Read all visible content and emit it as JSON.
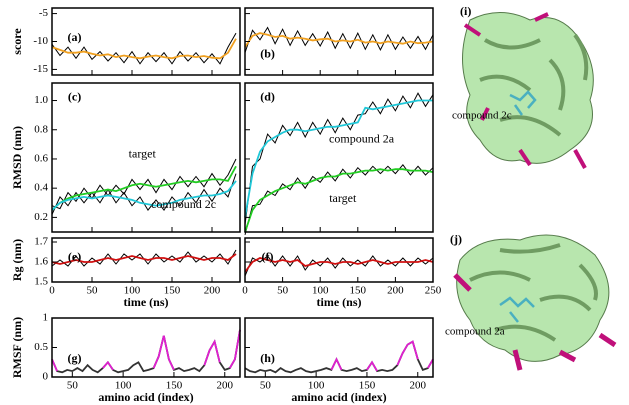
{
  "chart_data": [
    {
      "type": "line",
      "label": "(a)",
      "ylabel": "score",
      "xlim": [
        0,
        235
      ],
      "ylim": [
        -16,
        -4
      ],
      "xticks": [
        0,
        50,
        100,
        150,
        200
      ],
      "yticks": [
        -15,
        -10,
        -5
      ],
      "show_xtick_labels": false,
      "show_ytick_labels": true,
      "x": [
        0,
        10,
        20,
        30,
        40,
        50,
        60,
        70,
        80,
        90,
        100,
        110,
        120,
        130,
        140,
        150,
        160,
        170,
        180,
        190,
        200,
        210,
        220,
        230
      ],
      "series": [
        {
          "color": "#000000",
          "values": [
            -10.5,
            -12.5,
            -11,
            -13,
            -11,
            -13.2,
            -11.8,
            -13.5,
            -12,
            -13.8,
            -11.8,
            -14,
            -12,
            -13.6,
            -12,
            -14,
            -11.8,
            -13.5,
            -12,
            -13.8,
            -12.2,
            -14,
            -11,
            -8.5
          ]
        },
        {
          "color": "#f0a020",
          "values": [
            -11,
            -11.5,
            -12,
            -12,
            -11.8,
            -12.2,
            -12.5,
            -12.3,
            -12.8,
            -12.5,
            -12.8,
            -13,
            -12.7,
            -12.5,
            -12.8,
            -13,
            -12.6,
            -12.5,
            -12.8,
            -12.6,
            -12.9,
            -13,
            -12,
            -9.5
          ]
        }
      ]
    },
    {
      "type": "line",
      "label": "(b)",
      "xlim": [
        0,
        250
      ],
      "ylim": [
        -16,
        -4
      ],
      "xticks": [
        0,
        50,
        100,
        150,
        200,
        250
      ],
      "yticks": [
        -15,
        -10,
        -5
      ],
      "show_xtick_labels": false,
      "show_ytick_labels": false,
      "x": [
        0,
        10,
        20,
        30,
        40,
        50,
        60,
        70,
        80,
        90,
        100,
        110,
        120,
        130,
        140,
        150,
        160,
        170,
        180,
        190,
        200,
        210,
        220,
        230,
        240,
        250
      ],
      "series": [
        {
          "color": "#000000",
          "values": [
            -12,
            -8,
            -9.7,
            -7.5,
            -10.4,
            -7.8,
            -10.7,
            -8.1,
            -10.7,
            -8.6,
            -10.8,
            -8.3,
            -11.2,
            -8.6,
            -11.2,
            -8.5,
            -11.4,
            -8.8,
            -11.5,
            -8.8,
            -11.4,
            -9.2,
            -11.2,
            -9.1,
            -11.4,
            -8.8
          ]
        },
        {
          "color": "#f0a020",
          "values": [
            -11,
            -9,
            -8.5,
            -8.8,
            -9.2,
            -9,
            -9.5,
            -9.3,
            -9.5,
            -9.8,
            -9.6,
            -9.5,
            -10,
            -9.8,
            -10,
            -9.7,
            -10.2,
            -10,
            -10.3,
            -10,
            -10.2,
            -10.4,
            -10,
            -10.3,
            -10.2,
            -10
          ]
        }
      ]
    },
    {
      "type": "line",
      "label": "(c)",
      "ylabel": "RMSD (nm)",
      "xlim": [
        0,
        235
      ],
      "ylim": [
        0.1,
        1.12
      ],
      "xticks": [
        0,
        50,
        100,
        150,
        200
      ],
      "yticks": [
        0.2,
        0.4,
        0.6,
        0.8,
        {
          "value": 1,
          "label": "1.0"
        }
      ],
      "show_xtick_labels": false,
      "show_ytick_labels": true,
      "x": [
        0,
        10,
        20,
        30,
        40,
        50,
        60,
        70,
        80,
        90,
        100,
        110,
        120,
        130,
        140,
        150,
        160,
        170,
        180,
        190,
        200,
        210,
        220,
        230
      ],
      "series": [
        {
          "color": "#000000",
          "values": [
            0.22,
            0.34,
            0.28,
            0.37,
            0.3,
            0.37,
            0.3,
            0.39,
            0.3,
            0.37,
            0.28,
            0.34,
            0.25,
            0.32,
            0.25,
            0.34,
            0.28,
            0.37,
            0.3,
            0.39,
            0.31,
            0.4,
            0.34,
            0.5
          ]
        },
        {
          "color": "#000000",
          "values": [
            0.28,
            0.26,
            0.37,
            0.31,
            0.4,
            0.33,
            0.42,
            0.35,
            0.42,
            0.36,
            0.46,
            0.39,
            0.46,
            0.37,
            0.46,
            0.39,
            0.48,
            0.41,
            0.48,
            0.41,
            0.5,
            0.42,
            0.49,
            0.6
          ]
        },
        {
          "color": "#22cc22",
          "values": [
            0.25,
            0.3,
            0.33,
            0.35,
            0.36,
            0.37,
            0.38,
            0.39,
            0.38,
            0.4,
            0.42,
            0.43,
            0.42,
            0.41,
            0.42,
            0.43,
            0.44,
            0.45,
            0.44,
            0.45,
            0.46,
            0.46,
            0.45,
            0.55
          ]
        },
        {
          "color": "#20c8d8",
          "values": [
            0.25,
            0.3,
            0.32,
            0.33,
            0.34,
            0.33,
            0.34,
            0.35,
            0.34,
            0.33,
            0.32,
            0.3,
            0.29,
            0.28,
            0.29,
            0.3,
            0.32,
            0.33,
            0.34,
            0.35,
            0.35,
            0.36,
            0.38,
            0.45
          ]
        }
      ],
      "annotations": [
        {
          "text": "target",
          "color": "#22aa22"
        },
        {
          "text": "compound 2c",
          "color": "#1a7a8a"
        }
      ]
    },
    {
      "type": "line",
      "label": "(d)",
      "xlim": [
        0,
        250
      ],
      "ylim": [
        0.1,
        1.12
      ],
      "xticks": [
        0,
        50,
        100,
        150,
        200,
        250
      ],
      "yticks": [
        0.2,
        0.4,
        0.6,
        0.8,
        1
      ],
      "show_xtick_labels": false,
      "show_ytick_labels": false,
      "x": [
        0,
        10,
        20,
        30,
        40,
        50,
        60,
        70,
        80,
        90,
        100,
        110,
        120,
        130,
        140,
        150,
        160,
        170,
        180,
        190,
        200,
        210,
        220,
        230,
        240,
        250
      ],
      "series": [
        {
          "color": "#000000",
          "values": [
            0.15,
            0.55,
            0.6,
            0.77,
            0.71,
            0.83,
            0.76,
            0.85,
            0.75,
            0.85,
            0.77,
            0.87,
            0.78,
            0.88,
            0.8,
            0.9,
            0.91,
            0.99,
            0.91,
            1.01,
            0.93,
            1.03,
            0.95,
            1.05,
            0.96,
            1.04
          ]
        },
        {
          "color": "#000000",
          "values": [
            0.08,
            0.28,
            0.29,
            0.38,
            0.35,
            0.43,
            0.39,
            0.47,
            0.4,
            0.48,
            0.44,
            0.51,
            0.45,
            0.53,
            0.47,
            0.54,
            0.49,
            0.55,
            0.5,
            0.55,
            0.5,
            0.56,
            0.49,
            0.55,
            0.49,
            0.54
          ]
        },
        {
          "color": "#20c8d8",
          "values": [
            0.2,
            0.5,
            0.65,
            0.72,
            0.75,
            0.78,
            0.8,
            0.8,
            0.79,
            0.8,
            0.81,
            0.82,
            0.82,
            0.83,
            0.84,
            0.85,
            0.95,
            0.94,
            0.95,
            0.96,
            0.97,
            0.98,
            0.99,
            1.0,
            1.0,
            1.0
          ]
        },
        {
          "color": "#22cc22",
          "values": [
            0.1,
            0.25,
            0.32,
            0.35,
            0.38,
            0.4,
            0.42,
            0.44,
            0.43,
            0.45,
            0.47,
            0.48,
            0.48,
            0.5,
            0.5,
            0.51,
            0.52,
            0.52,
            0.53,
            0.52,
            0.53,
            0.53,
            0.52,
            0.52,
            0.52,
            0.51
          ]
        }
      ],
      "annotations": [
        {
          "text": "compound 2a",
          "color": "#1a7a8a"
        },
        {
          "text": "target",
          "color": "#22aa22"
        }
      ]
    },
    {
      "type": "line",
      "label": "(e)",
      "ylabel": "Rg (nm)",
      "xlabel": "time (ns)",
      "xlim": [
        0,
        235
      ],
      "ylim": [
        1.5,
        1.72
      ],
      "xticks": [
        0,
        50,
        100,
        150,
        200
      ],
      "yticks": [
        1.5,
        1.6,
        1.7
      ],
      "show_xtick_labels": true,
      "show_ytick_labels": true,
      "x": [
        0,
        10,
        20,
        30,
        40,
        50,
        60,
        70,
        80,
        90,
        100,
        110,
        120,
        130,
        140,
        150,
        160,
        170,
        180,
        190,
        200,
        210,
        220,
        230
      ],
      "series": [
        {
          "color": "#000000",
          "values": [
            1.58,
            1.61,
            1.58,
            1.63,
            1.58,
            1.62,
            1.59,
            1.64,
            1.59,
            1.64,
            1.61,
            1.64,
            1.59,
            1.64,
            1.6,
            1.63,
            1.6,
            1.65,
            1.6,
            1.63,
            1.6,
            1.64,
            1.59,
            1.66
          ]
        },
        {
          "color": "#d01010",
          "values": [
            1.6,
            1.59,
            1.6,
            1.61,
            1.6,
            1.6,
            1.61,
            1.62,
            1.61,
            1.62,
            1.63,
            1.62,
            1.61,
            1.62,
            1.62,
            1.61,
            1.62,
            1.63,
            1.62,
            1.61,
            1.62,
            1.62,
            1.61,
            1.64
          ]
        }
      ]
    },
    {
      "type": "line",
      "label": "(f)",
      "xlabel": "time (ns)",
      "xlim": [
        0,
        250
      ],
      "ylim": [
        1.5,
        1.72
      ],
      "xticks": [
        0,
        50,
        100,
        150,
        200,
        250
      ],
      "yticks": [
        1.5,
        1.6,
        1.7
      ],
      "show_xtick_labels": true,
      "show_ytick_labels": false,
      "x": [
        0,
        10,
        20,
        30,
        40,
        50,
        60,
        70,
        80,
        90,
        100,
        110,
        120,
        130,
        140,
        150,
        160,
        170,
        180,
        190,
        200,
        210,
        220,
        230,
        240,
        250
      ],
      "series": [
        {
          "color": "#000000",
          "values": [
            1.53,
            1.62,
            1.6,
            1.63,
            1.58,
            1.63,
            1.58,
            1.63,
            1.56,
            1.61,
            1.58,
            1.62,
            1.57,
            1.62,
            1.58,
            1.61,
            1.58,
            1.63,
            1.58,
            1.61,
            1.58,
            1.62,
            1.58,
            1.62,
            1.59,
            1.62
          ]
        },
        {
          "color": "#d01010",
          "values": [
            1.55,
            1.6,
            1.62,
            1.61,
            1.6,
            1.61,
            1.6,
            1.61,
            1.58,
            1.59,
            1.6,
            1.6,
            1.59,
            1.6,
            1.6,
            1.59,
            1.6,
            1.61,
            1.6,
            1.59,
            1.6,
            1.6,
            1.6,
            1.6,
            1.61,
            1.6
          ]
        }
      ]
    },
    {
      "type": "line",
      "label": "(g)",
      "ylabel": "RMSF (nm)",
      "xlabel": "amino acid (index)",
      "xlim": [
        30,
        215
      ],
      "ylim": [
        0,
        1
      ],
      "xticks": [
        50,
        100,
        150,
        200
      ],
      "yticks": [
        0,
        0.5,
        1
      ],
      "show_xtick_labels": true,
      "show_ytick_labels": true,
      "x": [
        30,
        35,
        40,
        45,
        50,
        55,
        60,
        65,
        70,
        75,
        80,
        85,
        90,
        95,
        100,
        105,
        110,
        115,
        120,
        125,
        130,
        135,
        140,
        145,
        150,
        155,
        160,
        165,
        170,
        175,
        180,
        185,
        190,
        195,
        200,
        205,
        210,
        215
      ],
      "series": [
        {
          "color": "#333333",
          "values": [
            0.3,
            0.1,
            0.08,
            0.12,
            0.1,
            0.15,
            0.1,
            0.2,
            0.12,
            0.08,
            0.15,
            0.25,
            0.12,
            0.08,
            0.1,
            0.12,
            0.2,
            0.25,
            0.1,
            0.12,
            0.15,
            0.35,
            0.7,
            0.3,
            0.12,
            0.15,
            0.1,
            0.12,
            0.15,
            0.1,
            0.2,
            0.45,
            0.6,
            0.25,
            0.12,
            0.15,
            0.3,
            0.8
          ]
        },
        {
          "color": "#e020d0",
          "values": [
            0.3,
            0.1,
            null,
            null,
            null,
            null,
            null,
            null,
            null,
            null,
            0.15,
            0.25,
            0.12,
            null,
            null,
            null,
            null,
            null,
            null,
            null,
            0.15,
            0.35,
            0.7,
            0.3,
            0.12,
            null,
            null,
            null,
            null,
            null,
            0.2,
            0.45,
            0.6,
            0.25,
            null,
            0.15,
            0.3,
            0.8
          ]
        }
      ]
    },
    {
      "type": "line",
      "label": "(h)",
      "xlabel": "amino acid (index)",
      "xlim": [
        30,
        215
      ],
      "ylim": [
        0,
        1
      ],
      "xticks": [
        50,
        100,
        150,
        200
      ],
      "yticks": [
        0,
        0.5,
        1
      ],
      "show_xtick_labels": true,
      "show_ytick_labels": false,
      "x": [
        30,
        35,
        40,
        45,
        50,
        55,
        60,
        65,
        70,
        75,
        80,
        85,
        90,
        95,
        100,
        105,
        110,
        115,
        120,
        125,
        130,
        135,
        140,
        145,
        150,
        155,
        160,
        165,
        170,
        175,
        180,
        185,
        190,
        195,
        200,
        205,
        210,
        215
      ],
      "series": [
        {
          "color": "#333333",
          "values": [
            0.15,
            0.1,
            0.08,
            0.12,
            0.1,
            0.12,
            0.08,
            0.15,
            0.1,
            0.08,
            0.12,
            0.15,
            0.1,
            0.08,
            0.1,
            0.12,
            0.15,
            0.12,
            0.3,
            0.12,
            0.1,
            0.12,
            0.15,
            0.1,
            0.12,
            0.25,
            0.1,
            0.12,
            0.1,
            0.12,
            0.2,
            0.4,
            0.55,
            0.6,
            0.3,
            0.12,
            0.15,
            0.3
          ]
        },
        {
          "color": "#e020d0",
          "values": [
            null,
            null,
            null,
            null,
            null,
            null,
            null,
            null,
            null,
            null,
            null,
            null,
            null,
            null,
            null,
            null,
            null,
            0.12,
            0.3,
            0.12,
            null,
            null,
            null,
            null,
            0.12,
            0.25,
            0.1,
            null,
            null,
            null,
            0.2,
            0.4,
            0.55,
            0.6,
            0.3,
            null,
            0.15,
            0.3
          ]
        }
      ]
    }
  ],
  "images": [
    {
      "label": "(i)",
      "caption": "compound 2c"
    },
    {
      "label": "(j)",
      "caption": "compound 2a"
    }
  ]
}
